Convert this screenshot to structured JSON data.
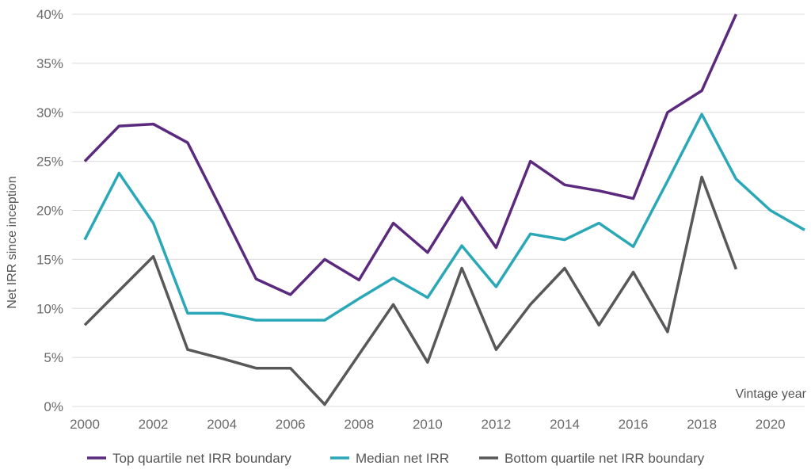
{
  "chart_data": {
    "type": "line",
    "title": "",
    "xlabel": "Vintage year",
    "ylabel": "Net IRR since inception",
    "x": [
      2000,
      2001,
      2002,
      2003,
      2004,
      2005,
      2006,
      2007,
      2008,
      2009,
      2010,
      2011,
      2012,
      2013,
      2014,
      2015,
      2016,
      2017,
      2018,
      2019,
      2020,
      2021
    ],
    "xlim": [
      2000,
      2021
    ],
    "ylim": [
      0,
      40
    ],
    "x_ticks": [
      "2000",
      "2002",
      "2004",
      "2006",
      "2008",
      "2010",
      "2012",
      "2014",
      "2016",
      "2018",
      "2020"
    ],
    "y_ticks": [
      "0%",
      "5%",
      "10%",
      "15%",
      "20%",
      "25%",
      "30%",
      "35%",
      "40%"
    ],
    "grid": "horizontal",
    "legend_position": "bottom",
    "series": [
      {
        "name": "Top quartile net IRR boundary",
        "color": "#5b2a7e",
        "values": [
          25.0,
          28.6,
          28.8,
          26.9,
          20.0,
          13.0,
          11.4,
          15.0,
          12.9,
          18.7,
          15.7,
          21.3,
          16.2,
          25.0,
          22.6,
          22.0,
          21.2,
          30.0,
          32.2,
          40.0,
          null,
          null
        ]
      },
      {
        "name": "Median net IRR",
        "color": "#2aa8b8",
        "values": [
          17.0,
          23.8,
          18.7,
          9.5,
          9.5,
          8.8,
          8.8,
          8.8,
          11.0,
          13.1,
          11.1,
          16.4,
          12.2,
          17.6,
          17.0,
          18.7,
          16.3,
          23.0,
          29.8,
          23.2,
          20.0,
          18.0
        ]
      },
      {
        "name": "Bottom quartile net IRR boundary",
        "color": "#58585a",
        "values": [
          8.3,
          11.8,
          15.3,
          5.8,
          4.9,
          3.9,
          3.9,
          0.2,
          5.3,
          10.4,
          4.5,
          14.1,
          5.8,
          10.4,
          14.1,
          8.3,
          13.7,
          7.6,
          23.4,
          14.0,
          null,
          null
        ]
      }
    ]
  }
}
